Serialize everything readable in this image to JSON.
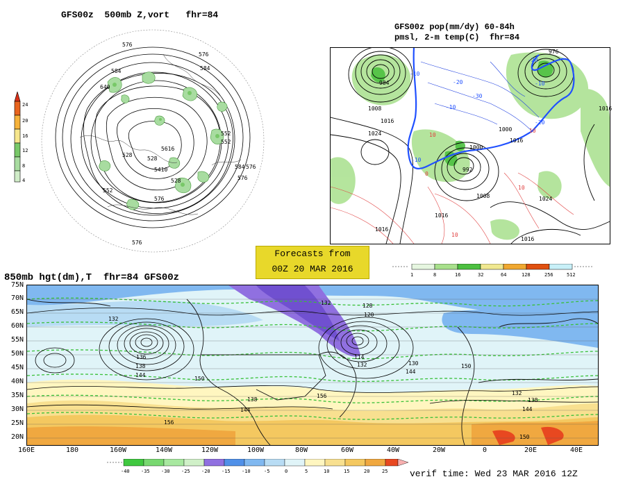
{
  "panel_tl": {
    "title": "GFS00z  500mb Z,vort   fhr=84",
    "colorbar_labels": [
      "24",
      "20",
      "16",
      "12",
      "8",
      "4"
    ],
    "colorbar_colors": [
      "#e8641e",
      "#f6b23a",
      "#f6e68c",
      "#78c868",
      "#a8dca0",
      "#d0ecc8"
    ],
    "contour_labels": [
      "576",
      "576",
      "584",
      "640",
      "528",
      "576",
      "528",
      "576",
      "584",
      "552",
      "5616",
      "552",
      "5410",
      "528",
      "584",
      "576",
      "552",
      "576"
    ]
  },
  "panel_tr": {
    "title_line1": "GFS00z pop(mm/dy) 60-84h",
    "title_line2": "pmsl, 2-m temp(C)  fhr=84",
    "pressure_labels": [
      "984",
      "976",
      "1008",
      "1016",
      "1024",
      "1000",
      "992",
      "1008",
      "1016",
      "1016",
      "1016",
      "1016",
      "1024",
      "1000",
      "1016"
    ],
    "temp_labels": [
      "-10",
      "-20",
      "-30",
      "-10",
      "-20",
      "-10",
      "-10",
      "-20",
      "0",
      "10",
      "10",
      "10",
      "10"
    ],
    "colorbar_labels": [
      "1",
      "8",
      "16",
      "32",
      "64",
      "128",
      "256",
      "512"
    ],
    "colorbar_colors": [
      "#e6f6e0",
      "#a8e08c",
      "#4cc040",
      "#f0e890",
      "#f0a830",
      "#e05010",
      "#c8f0f8"
    ]
  },
  "forecast_box": {
    "line1": "Forecasts from",
    "line2": "00Z 20 MAR 2016"
  },
  "panel_bottom": {
    "title": "850mb hgt(dm),T  fhr=84 GFS00z",
    "lat_labels": [
      "75N",
      "70N",
      "65N",
      "60N",
      "55N",
      "50N",
      "45N",
      "40N",
      "35N",
      "30N",
      "25N",
      "20N"
    ],
    "lon_labels": [
      "160E",
      "180",
      "160W",
      "140W",
      "120W",
      "100W",
      "80W",
      "60W",
      "40W",
      "20W",
      "0",
      "20E",
      "40E"
    ],
    "height_labels": [
      "132",
      "132",
      "128",
      "120",
      "138",
      "136",
      "144",
      "114",
      "132",
      "130",
      "144",
      "150",
      "150",
      "156",
      "138",
      "144",
      "156",
      "132",
      "138",
      "144",
      "150"
    ],
    "colorbar_labels": [
      "-40",
      "-35",
      "-30",
      "-25",
      "-20",
      "-15",
      "-10",
      "-5",
      "0",
      "5",
      "10",
      "15",
      "20",
      "25"
    ],
    "colorbar_colors": [
      "#40c840",
      "#78d870",
      "#a8e8a0",
      "#d0f0c8",
      "#9070e0",
      "#5090e8",
      "#80b8f0",
      "#b8dcf4",
      "#e0f4f8",
      "#fff6c0",
      "#f8e090",
      "#f4c860",
      "#f0a840",
      "#e84820"
    ]
  },
  "verif_time": "verif time: Wed 23 MAR 2016 12Z"
}
